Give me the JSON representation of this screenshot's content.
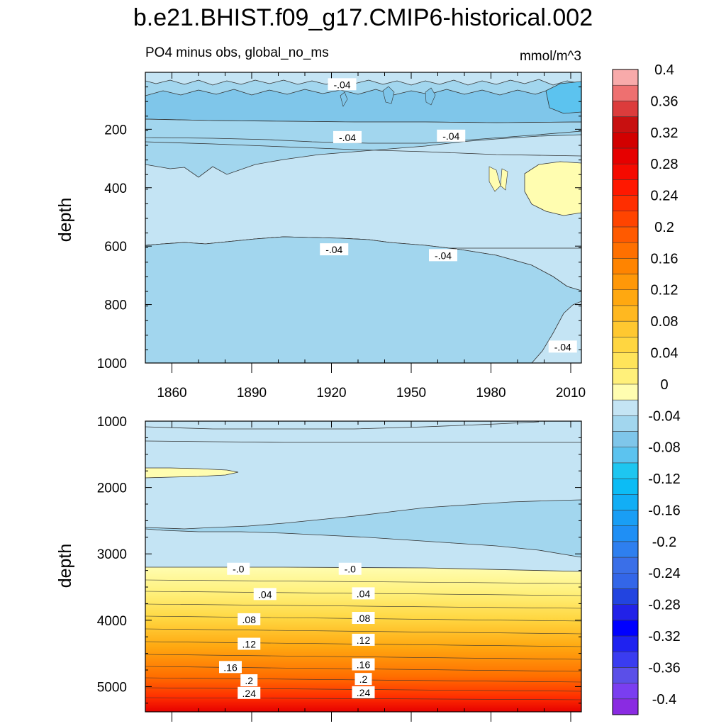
{
  "chart_data": {
    "type": "heatmap",
    "title": "b.e21.BHIST.f09_g17.CMIP6-historical.002",
    "subtitle_left": "PO4 minus obs, global_no_ms",
    "subtitle_right": "mmol/m^3",
    "x": {
      "range": [
        1850,
        2014
      ],
      "major_ticks": [
        1860,
        1890,
        1920,
        1950,
        1980,
        2010
      ],
      "tick_labels": [
        "1860",
        "1890",
        "1920",
        "1950",
        "1980",
        "2010"
      ]
    },
    "panels": [
      {
        "name": "upper",
        "ylabel": "depth",
        "ylim": [
          1000,
          5
        ],
        "major_ticks": [
          200,
          400,
          600,
          800,
          1000
        ],
        "tick_labels": [
          "200",
          "400",
          "600",
          "800",
          "1000"
        ],
        "contour_labels": [
          {
            "text": "-.04",
            "year": 1924,
            "depth": 47
          },
          {
            "text": "-.04",
            "year": 1926,
            "depth": 228
          },
          {
            "text": "-.04",
            "year": 1965,
            "depth": 223
          },
          {
            "text": "-.04",
            "year": 1921,
            "depth": 612
          },
          {
            "text": "-.04",
            "year": 1962,
            "depth": 632
          },
          {
            "text": "-.04",
            "year": 2007,
            "depth": 945
          }
        ]
      },
      {
        "name": "lower",
        "ylabel": "depth",
        "ylim": [
          5380,
          1000
        ],
        "major_ticks": [
          1000,
          2000,
          3000,
          4000,
          5000
        ],
        "tick_labels": [
          "1000",
          "2000",
          "3000",
          "4000",
          "5000"
        ],
        "contour_labels": [
          {
            "text": "-.0",
            "year": 1885,
            "depth": 3230
          },
          {
            "text": "-.0",
            "year": 1927,
            "depth": 3230
          },
          {
            "text": ".04",
            "year": 1895,
            "depth": 3610
          },
          {
            "text": ".04",
            "year": 1932,
            "depth": 3600
          },
          {
            "text": ".08",
            "year": 1889,
            "depth": 3990
          },
          {
            "text": ".08",
            "year": 1932,
            "depth": 3970
          },
          {
            "text": ".12",
            "year": 1889,
            "depth": 4360
          },
          {
            "text": ".12",
            "year": 1932,
            "depth": 4300
          },
          {
            "text": ".16",
            "year": 1882,
            "depth": 4710
          },
          {
            "text": ".16",
            "year": 1932,
            "depth": 4670
          },
          {
            "text": ".2",
            "year": 1889,
            "depth": 4910
          },
          {
            "text": ".2",
            "year": 1932,
            "depth": 4890
          },
          {
            "text": ".24",
            "year": 1889,
            "depth": 5100
          },
          {
            "text": ".24",
            "year": 1932,
            "depth": 5090
          }
        ]
      }
    ],
    "colorbar": {
      "levels": [
        -0.42,
        -0.4,
        -0.38,
        -0.36,
        -0.34,
        -0.32,
        -0.3,
        -0.28,
        -0.26,
        -0.24,
        -0.22,
        -0.2,
        -0.18,
        -0.16,
        -0.14,
        -0.12,
        -0.1,
        -0.08,
        -0.06,
        -0.04,
        -0.02,
        0.0,
        0.02,
        0.04,
        0.06,
        0.08,
        0.1,
        0.12,
        0.14,
        0.16,
        0.18,
        0.2,
        0.22,
        0.24,
        0.26,
        0.28,
        0.3,
        0.32,
        0.34,
        0.36,
        0.38,
        0.4
      ],
      "labels": [
        "-0.4",
        "-0.36",
        "-0.32",
        "-0.28",
        "-0.24",
        "-0.2",
        "-0.16",
        "-0.12",
        "-0.08",
        "-0.04",
        "0",
        "0.04",
        "0.08",
        "0.12",
        "0.16",
        "0.2",
        "0.24",
        "0.28",
        "0.32",
        "0.36",
        "0.4"
      ],
      "label_values": [
        -0.4,
        -0.36,
        -0.32,
        -0.28,
        -0.24,
        -0.2,
        -0.16,
        -0.12,
        -0.08,
        -0.04,
        0,
        0.04,
        0.08,
        0.12,
        0.16,
        0.2,
        0.24,
        0.28,
        0.32,
        0.36,
        0.4
      ],
      "colors": [
        "#8a2be2",
        "#7a3ef0",
        "#5b4fe8",
        "#3a3cf0",
        "#1f22f0",
        "#0000ff",
        "#2222e8",
        "#2244e0",
        "#3366e8",
        "#3a6fe8",
        "#2e7fef",
        "#1f8ff5",
        "#199ef5",
        "#12aef5",
        "#0cbcf5",
        "#1ec6f0",
        "#5cc3ef",
        "#7fc6ea",
        "#a2d6ee",
        "#c4e4f4",
        "#fffdb0",
        "#fff07a",
        "#ffe45a",
        "#ffd640",
        "#ffc830",
        "#ffb820",
        "#ffa810",
        "#ff9808",
        "#ff8400",
        "#ff7000",
        "#ff5a00",
        "#ff4400",
        "#ff2e00",
        "#ff1800",
        "#f50a00",
        "#e60000",
        "#d20000",
        "#c81010",
        "#dc3c3c",
        "#ee7070",
        "#f8aaaa"
      ]
    }
  }
}
